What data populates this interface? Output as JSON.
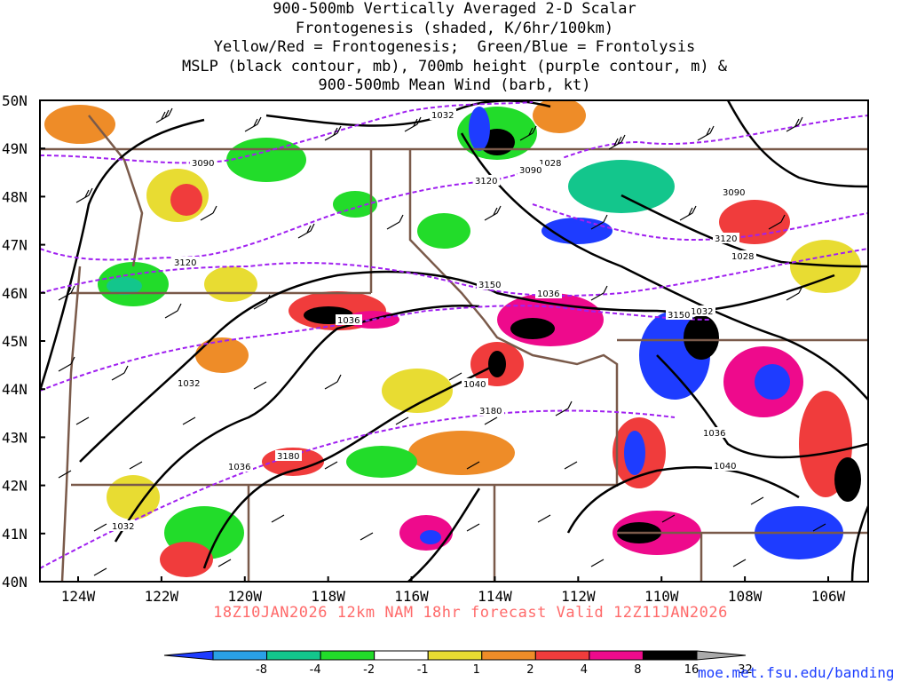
{
  "title_lines": [
    "900-500mb Vertically Averaged 2-D Scalar",
    "Frontogenesis (shaded, K/6hr/100km)",
    "Yellow/Red = Frontogenesis;  Green/Blue = Frontolysis",
    "MSLP (black contour, mb), 700mb height (purple contour, m) &",
    "900-500mb Mean Wind (barb, kt)"
  ],
  "footer": "18Z10JAN2026 12km NAM 18hr forecast Valid 12Z11JAN2026",
  "credit": "moe.met.fsu.edu/banding",
  "lat_labels": [
    "50N",
    "49N",
    "48N",
    "47N",
    "46N",
    "45N",
    "44N",
    "43N",
    "42N",
    "41N",
    "40N"
  ],
  "lon_labels": [
    "124W",
    "122W",
    "120W",
    "118W",
    "116W",
    "114W",
    "112W",
    "110W",
    "108W",
    "106W"
  ],
  "mslp_labels": [
    "1032",
    "1028",
    "1036",
    "1040",
    "1032",
    "1036",
    "1028",
    "1032",
    "1036",
    "1040",
    "1032"
  ],
  "height_labels": [
    "3090",
    "3120",
    "3090",
    "3120",
    "3120",
    "3090",
    "3150",
    "3150",
    "3180",
    "3180"
  ],
  "colorbar": {
    "labels": [
      "-8",
      "-4",
      "-2",
      "-1",
      "1",
      "2",
      "4",
      "8",
      "16",
      "32"
    ],
    "colors": [
      "#1e3cff",
      "#2aa0e6",
      "#13c68c",
      "#22dc2a",
      "#ffffff",
      "#e8dc32",
      "#ee8c28",
      "#f03c3c",
      "#ee0a8c",
      "#000000",
      "#aaaaaa"
    ]
  },
  "colors": {
    "border": "#7a5a4a",
    "mslp": "#000000",
    "height": "#a020f0",
    "footer": "#ff6a6a",
    "credit": "#1a3cff"
  }
}
